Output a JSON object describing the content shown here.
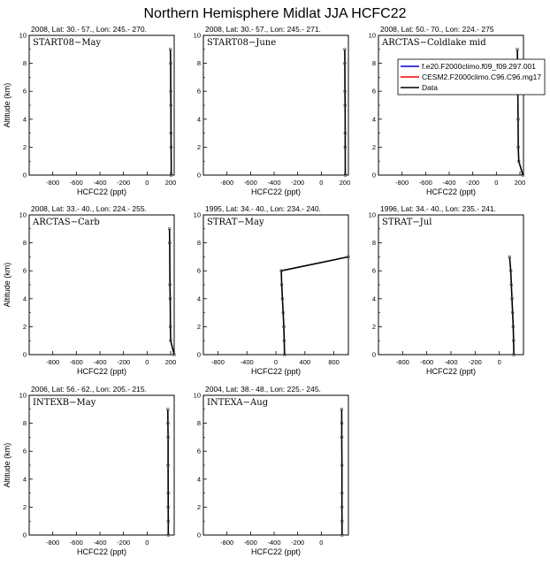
{
  "figure": {
    "title": "Northern Hemisphere Midlat JJA HCFC22"
  },
  "legend": {
    "entries": [
      {
        "label": "f.e20.F2000climo.f09_f09.297.001",
        "color": "#0000cc"
      },
      {
        "label": "CESM2.F2000climo.C96.C96.mg17",
        "color": "#ff0000"
      },
      {
        "label": "Data",
        "color": "#000000"
      }
    ]
  },
  "chart_data": [
    {
      "type": "line",
      "header": "2008, Lat:  30.- 57., Lon: 245.- 270.",
      "campaign": "START08−May",
      "xlabel": "HCFC22 (ppt)",
      "ylabel": "Altitude (km)",
      "xlim": [
        -1000,
        230
      ],
      "ylim": [
        0,
        10
      ],
      "xticks": [
        -800,
        -600,
        -400,
        -200,
        0,
        200
      ],
      "yticks": [
        0,
        2,
        4,
        6,
        8,
        10
      ],
      "series": [
        {
          "color": "#000000",
          "x": [
            205,
            204,
            203,
            202,
            201,
            200,
            198
          ],
          "y": [
            0,
            2,
            3,
            5,
            6,
            8,
            9
          ]
        }
      ]
    },
    {
      "type": "line",
      "header": "2008, Lat:  30.- 57., Lon: 245.- 271.",
      "campaign": "START08−June",
      "xlabel": "HCFC22 (ppt)",
      "ylabel": "",
      "xlim": [
        -1000,
        230
      ],
      "ylim": [
        0,
        10
      ],
      "xticks": [
        -800,
        -600,
        -400,
        -200,
        0,
        200
      ],
      "yticks": [
        0,
        2,
        4,
        6,
        8,
        10
      ],
      "series": [
        {
          "color": "#000000",
          "x": [
            204,
            203,
            203,
            202,
            201,
            200,
            199
          ],
          "y": [
            0,
            2,
            3,
            5,
            6,
            8,
            9
          ]
        }
      ]
    },
    {
      "type": "line",
      "header": "2008, Lat:  50.- 70., Lon: 224.- 275",
      "campaign": "ARCTAS−Coldlake mid",
      "xlabel": "HCFC22 (ppt)",
      "ylabel": "",
      "xlim": [
        -1000,
        230
      ],
      "ylim": [
        0,
        10
      ],
      "xticks": [
        -800,
        -600,
        -400,
        -200,
        0,
        200
      ],
      "yticks": [
        0,
        2,
        4,
        6,
        8,
        10
      ],
      "series": [
        {
          "color": "#000000",
          "x": [
            225,
            190,
            186,
            184,
            182,
            180,
            178
          ],
          "y": [
            0,
            1,
            2,
            4,
            6,
            8,
            9
          ]
        }
      ]
    },
    {
      "type": "line",
      "header": "2008, Lat:  33.- 40., Lon: 224.- 255.",
      "campaign": "ARCTAS−Carb",
      "xlabel": "HCFC22 (ppt)",
      "ylabel": "Altitude (km)",
      "xlim": [
        -1000,
        230
      ],
      "ylim": [
        0,
        10
      ],
      "xticks": [
        -800,
        -600,
        -400,
        -200,
        0,
        200
      ],
      "yticks": [
        0,
        2,
        4,
        6,
        8,
        10
      ],
      "series": [
        {
          "color": "#000000",
          "x": [
            230,
            200,
            198,
            196,
            194,
            192,
            190
          ],
          "y": [
            0,
            1,
            2,
            4,
            5,
            8,
            9
          ]
        }
      ]
    },
    {
      "type": "line",
      "header": "1995, Lat:  34.- 40., Lon: 234.- 240.",
      "campaign": "STRAT−May",
      "xlabel": "HCFC22 (ppt)",
      "ylabel": "",
      "xlim": [
        -1000,
        1000
      ],
      "ylim": [
        0,
        10
      ],
      "xticks": [
        -800,
        -400,
        0,
        400,
        800
      ],
      "yticks": [
        0,
        2,
        4,
        6,
        8,
        10
      ],
      "series": [
        {
          "color": "#000000",
          "x": [
            120,
            115,
            110,
            100,
            90,
            80,
            75,
            1000
          ],
          "y": [
            0,
            1,
            2,
            3,
            4,
            5,
            6,
            7
          ]
        }
      ]
    },
    {
      "type": "line",
      "header": "1996, Lat:  34.- 40., Lon: 235.- 241.",
      "campaign": "STRAT−Jul",
      "xlabel": "HCFC22 (ppt)",
      "ylabel": "",
      "xlim": [
        -1000,
        200
      ],
      "ylim": [
        0,
        10
      ],
      "xticks": [
        -800,
        -600,
        -400,
        -200,
        0
      ],
      "yticks": [
        0,
        2,
        4,
        6,
        8,
        10
      ],
      "series": [
        {
          "color": "#000000",
          "x": [
            120,
            118,
            115,
            110,
            105,
            100,
            95,
            85
          ],
          "y": [
            0,
            1,
            2,
            3,
            4,
            5,
            6,
            7
          ]
        }
      ]
    },
    {
      "type": "line",
      "header": "2006, Lat:  56.- 62., Lon: 205.- 215.",
      "campaign": "INTEXB−May",
      "xlabel": "HCFC22 (ppt)",
      "ylabel": "Altitude (km)",
      "xlim": [
        -1000,
        230
      ],
      "ylim": [
        0,
        10
      ],
      "xticks": [
        -800,
        -600,
        -400,
        -200,
        0
      ],
      "yticks": [
        0,
        2,
        4,
        6,
        8,
        10
      ],
      "series": [
        {
          "color": "#000000",
          "x": [
            180,
            180,
            179,
            179,
            178,
            178,
            177,
            176
          ],
          "y": [
            0,
            1,
            2,
            3,
            5,
            7,
            8,
            9
          ]
        }
      ]
    },
    {
      "type": "line",
      "header": "2004, Lat:  38.- 48., Lon: 225.- 245.",
      "campaign": "INTEXA−Aug",
      "xlabel": "HCFC22 (ppt)",
      "ylabel": "",
      "xlim": [
        -1000,
        230
      ],
      "ylim": [
        0,
        10
      ],
      "xticks": [
        -800,
        -600,
        -400,
        -200,
        0
      ],
      "yticks": [
        0,
        2,
        4,
        6,
        8,
        10
      ],
      "series": [
        {
          "color": "#000000",
          "x": [
            176,
            176,
            175,
            175,
            175,
            174,
            174,
            173
          ],
          "y": [
            0,
            1,
            2,
            3,
            5,
            7,
            8,
            9
          ]
        }
      ]
    }
  ]
}
